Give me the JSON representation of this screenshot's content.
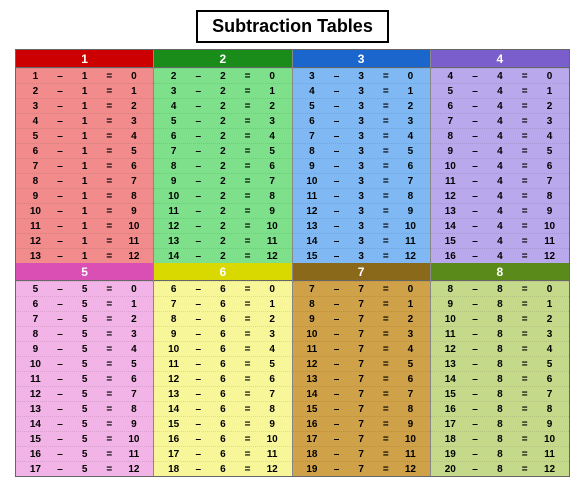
{
  "title": "Subtraction Tables",
  "minus": "–",
  "equals": "=",
  "colors": {
    "header_text": "#ffffff",
    "head_dark": {
      "1": "#cc0000",
      "2": "#1a8c1a",
      "3": "#1a66cc",
      "4": "#7a5ecc",
      "5": "#d94fb3",
      "6": "#d9d900",
      "7": "#8a6a1a",
      "8": "#5a8a1a"
    },
    "body": {
      "1": "#f28b8b",
      "2": "#7ee08a",
      "3": "#7fb8f2",
      "4": "#b9a8ec",
      "5": "#f2b3e6",
      "6": "#f7f79a",
      "7": "#cfa24a",
      "8": "#c4d98a"
    }
  },
  "bands": [
    {
      "columns": [
        {
          "n": 1,
          "rows": [
            [
              1,
              1,
              0
            ],
            [
              2,
              1,
              1
            ],
            [
              3,
              1,
              2
            ],
            [
              4,
              1,
              3
            ],
            [
              5,
              1,
              4
            ],
            [
              6,
              1,
              5
            ],
            [
              7,
              1,
              6
            ],
            [
              8,
              1,
              7
            ],
            [
              9,
              1,
              8
            ],
            [
              10,
              1,
              9
            ],
            [
              11,
              1,
              10
            ],
            [
              12,
              1,
              11
            ],
            [
              13,
              1,
              12
            ]
          ]
        },
        {
          "n": 2,
          "rows": [
            [
              2,
              2,
              0
            ],
            [
              3,
              2,
              1
            ],
            [
              4,
              2,
              2
            ],
            [
              5,
              2,
              3
            ],
            [
              6,
              2,
              4
            ],
            [
              7,
              2,
              5
            ],
            [
              8,
              2,
              6
            ],
            [
              9,
              2,
              7
            ],
            [
              10,
              2,
              8
            ],
            [
              11,
              2,
              9
            ],
            [
              12,
              2,
              10
            ],
            [
              13,
              2,
              11
            ],
            [
              14,
              2,
              12
            ]
          ]
        },
        {
          "n": 3,
          "rows": [
            [
              3,
              3,
              0
            ],
            [
              4,
              3,
              1
            ],
            [
              5,
              3,
              2
            ],
            [
              6,
              3,
              3
            ],
            [
              7,
              3,
              4
            ],
            [
              8,
              3,
              5
            ],
            [
              9,
              3,
              6
            ],
            [
              10,
              3,
              7
            ],
            [
              11,
              3,
              8
            ],
            [
              12,
              3,
              9
            ],
            [
              13,
              3,
              10
            ],
            [
              14,
              3,
              11
            ],
            [
              15,
              3,
              12
            ]
          ]
        },
        {
          "n": 4,
          "rows": [
            [
              4,
              4,
              0
            ],
            [
              5,
              4,
              1
            ],
            [
              6,
              4,
              2
            ],
            [
              7,
              4,
              3
            ],
            [
              8,
              4,
              4
            ],
            [
              9,
              4,
              5
            ],
            [
              10,
              4,
              6
            ],
            [
              11,
              4,
              7
            ],
            [
              12,
              4,
              8
            ],
            [
              13,
              4,
              9
            ],
            [
              14,
              4,
              10
            ],
            [
              15,
              4,
              11
            ],
            [
              16,
              4,
              12
            ]
          ]
        }
      ]
    },
    {
      "columns": [
        {
          "n": 5,
          "rows": [
            [
              5,
              5,
              0
            ],
            [
              6,
              5,
              1
            ],
            [
              7,
              5,
              2
            ],
            [
              8,
              5,
              3
            ],
            [
              9,
              5,
              4
            ],
            [
              10,
              5,
              5
            ],
            [
              11,
              5,
              6
            ],
            [
              12,
              5,
              7
            ],
            [
              13,
              5,
              8
            ],
            [
              14,
              5,
              9
            ],
            [
              15,
              5,
              10
            ],
            [
              16,
              5,
              11
            ],
            [
              17,
              5,
              12
            ]
          ]
        },
        {
          "n": 6,
          "rows": [
            [
              6,
              6,
              0
            ],
            [
              7,
              6,
              1
            ],
            [
              8,
              6,
              2
            ],
            [
              9,
              6,
              3
            ],
            [
              10,
              6,
              4
            ],
            [
              11,
              6,
              5
            ],
            [
              12,
              6,
              6
            ],
            [
              13,
              6,
              7
            ],
            [
              14,
              6,
              8
            ],
            [
              15,
              6,
              9
            ],
            [
              16,
              6,
              10
            ],
            [
              17,
              6,
              11
            ],
            [
              18,
              6,
              12
            ]
          ]
        },
        {
          "n": 7,
          "rows": [
            [
              7,
              7,
              0
            ],
            [
              8,
              7,
              1
            ],
            [
              9,
              7,
              2
            ],
            [
              10,
              7,
              3
            ],
            [
              11,
              7,
              4
            ],
            [
              12,
              7,
              5
            ],
            [
              13,
              7,
              6
            ],
            [
              14,
              7,
              7
            ],
            [
              15,
              7,
              8
            ],
            [
              16,
              7,
              9
            ],
            [
              17,
              7,
              10
            ],
            [
              18,
              7,
              11
            ],
            [
              19,
              7,
              12
            ]
          ]
        },
        {
          "n": 8,
          "rows": [
            [
              8,
              8,
              0
            ],
            [
              9,
              8,
              1
            ],
            [
              10,
              8,
              2
            ],
            [
              11,
              8,
              3
            ],
            [
              12,
              8,
              4
            ],
            [
              13,
              8,
              5
            ],
            [
              14,
              8,
              6
            ],
            [
              15,
              8,
              7
            ],
            [
              16,
              8,
              8
            ],
            [
              17,
              8,
              9
            ],
            [
              18,
              8,
              10
            ],
            [
              19,
              8,
              11
            ],
            [
              20,
              8,
              12
            ]
          ]
        }
      ]
    }
  ]
}
